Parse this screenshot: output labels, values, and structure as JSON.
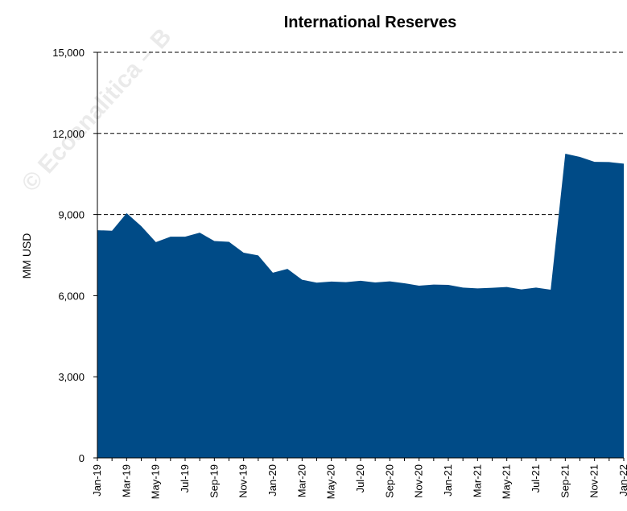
{
  "chart_data": {
    "type": "area",
    "title": "International Reserves",
    "xlabel": "",
    "ylabel": "MM USD",
    "ylim": [
      0,
      15000
    ],
    "yticks": [
      0,
      3000,
      6000,
      9000,
      12000,
      15000
    ],
    "ytick_labels": [
      "0",
      "3,000",
      "6,000",
      "9,000",
      "12,000",
      "15,000"
    ],
    "gridlines": {
      "style": "dashed",
      "values": [
        9000,
        12000,
        15000
      ]
    },
    "x": [
      "Jan-19",
      "Feb-19",
      "Mar-19",
      "Apr-19",
      "May-19",
      "Jun-19",
      "Jul-19",
      "Aug-19",
      "Sep-19",
      "Oct-19",
      "Nov-19",
      "Dec-19",
      "Jan-20",
      "Feb-20",
      "Mar-20",
      "Apr-20",
      "May-20",
      "Jun-20",
      "Jul-20",
      "Aug-20",
      "Sep-20",
      "Oct-20",
      "Nov-20",
      "Dec-20",
      "Jan-21",
      "Feb-21",
      "Mar-21",
      "Apr-21",
      "May-21",
      "Jun-21",
      "Jul-21",
      "Aug-21",
      "Sep-21",
      "Oct-21",
      "Nov-21",
      "Dec-21",
      "Jan-22"
    ],
    "xtick_labels": [
      "Jan-19",
      "Mar-19",
      "May-19",
      "Jul-19",
      "Sep-19",
      "Nov-19",
      "Jan-20",
      "Mar-20",
      "May-20",
      "Jul-20",
      "Sep-20",
      "Nov-20",
      "Jan-21",
      "Mar-21",
      "May-21",
      "Jul-21",
      "Sep-21",
      "Nov-21",
      "Jan-22"
    ],
    "series": [
      {
        "color": "#004B87",
        "values": [
          8420,
          8400,
          9050,
          8570,
          7980,
          8180,
          8180,
          8330,
          8020,
          7990,
          7590,
          7490,
          6850,
          6990,
          6590,
          6480,
          6520,
          6500,
          6550,
          6490,
          6530,
          6460,
          6370,
          6410,
          6400,
          6300,
          6270,
          6290,
          6320,
          6230,
          6300,
          6220,
          11250,
          11130,
          10950,
          10940,
          10880
        ]
      }
    ]
  },
  "watermark": {
    "text": "© Ecoanalitica – B"
  }
}
